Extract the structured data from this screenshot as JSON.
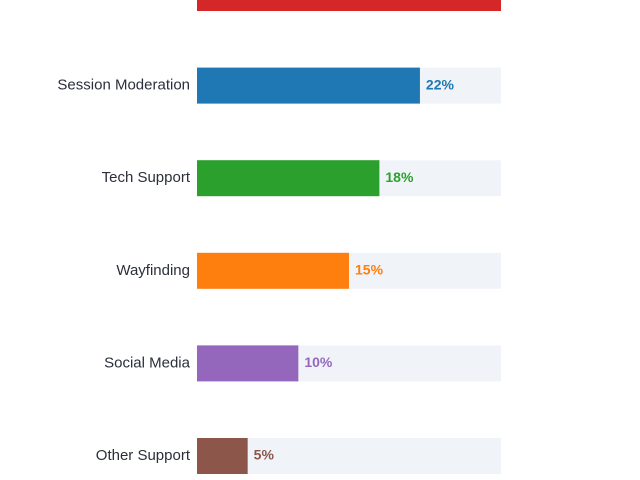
{
  "chart_data": {
    "type": "bar",
    "orientation": "horizontal",
    "xlim": [
      0,
      30
    ],
    "grid": false,
    "categories": [
      "",
      "Session Moderation",
      "Tech Support",
      "Wayfinding",
      "Social Media",
      "Other Support"
    ],
    "values": [
      30,
      22,
      18,
      15,
      10,
      5
    ],
    "value_labels": [
      "",
      "22%",
      "18%",
      "15%",
      "10%",
      "5%"
    ],
    "colors": [
      "#d62728",
      "#1f77b4",
      "#2ca02c",
      "#ff7f0e",
      "#9467bd",
      "#8c564b"
    ],
    "track_color": "#f0f4f8"
  }
}
